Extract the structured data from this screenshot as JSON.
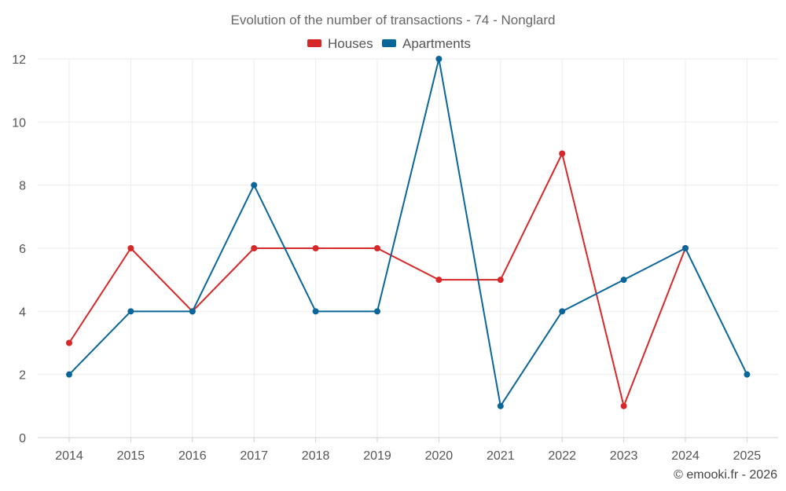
{
  "chart_data": {
    "type": "line",
    "title": "Evolution of the number of transactions - 74 - Nonglard",
    "xlabel": "",
    "ylabel": "",
    "categories": [
      "2014",
      "2015",
      "2016",
      "2017",
      "2018",
      "2019",
      "2020",
      "2021",
      "2022",
      "2023",
      "2024",
      "2025"
    ],
    "ylim": [
      0,
      12
    ],
    "yticks": [
      0,
      2,
      4,
      6,
      8,
      10,
      12
    ],
    "grid": true,
    "legend_position": "top-center",
    "series": [
      {
        "name": "Houses",
        "color": "#d62828",
        "values": [
          3,
          6,
          4,
          6,
          6,
          6,
          5,
          5,
          9,
          1,
          6,
          null
        ]
      },
      {
        "name": "Apartments",
        "color": "#0a6699",
        "values": [
          2,
          4,
          4,
          8,
          4,
          4,
          12,
          1,
          4,
          5,
          6,
          2
        ]
      }
    ]
  },
  "credit": "© emooki.fr - 2026"
}
